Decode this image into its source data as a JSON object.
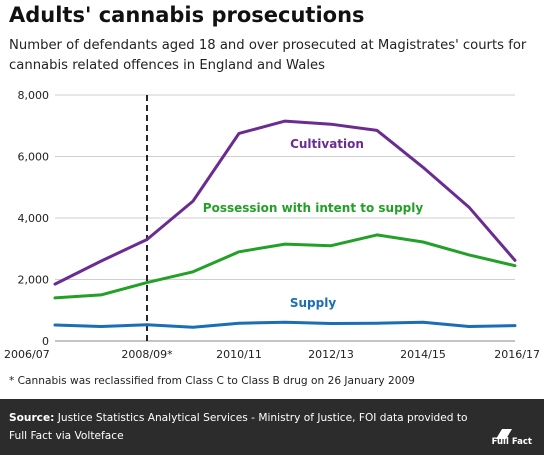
{
  "title": "Adults' cannabis prosecutions",
  "subtitle": "Number of defendants aged 18 and over prosecuted at Magistrates' courts for cannabis related offences in England and Wales",
  "footnote": "* Cannabis was reclassified from Class C to Class B drug on 26 January 2009",
  "source_label": "Source:",
  "source_text": "Justice Statistics Analytical Services - Ministry of Justice, FOI data provided to Full Fact via Volteface",
  "logo_text": "Full Fact",
  "chart_data": {
    "type": "line",
    "title": "",
    "xlabel": "",
    "ylabel": "",
    "x": [
      "2006/07",
      "2007/08",
      "2008/09*",
      "2009/10",
      "2010/11",
      "2011/12",
      "2012/13",
      "2013/14",
      "2014/15",
      "2015/16",
      "2016/17"
    ],
    "x_tick_labels": [
      "2006/07",
      "2008/09*",
      "2010/11",
      "2012/13",
      "2014/15",
      "2016/17"
    ],
    "y_tick_labels": [
      "0",
      "2,000",
      "4,000",
      "6,000",
      "8,000"
    ],
    "ylim": [
      0,
      8000
    ],
    "y_ticks": [
      0,
      2000,
      4000,
      6000,
      8000
    ],
    "grid": true,
    "legend": "inline labels",
    "reference_line": {
      "x": "2008/09*",
      "style": "dashed",
      "color": "#111111"
    },
    "series": [
      {
        "name": "Cultivation",
        "color": "#6a2c91",
        "values": [
          1850,
          2600,
          3300,
          4550,
          6750,
          7150,
          7050,
          6850,
          5650,
          4350,
          2620
        ]
      },
      {
        "name": "Possession with intent to supply",
        "color": "#23a027",
        "values": [
          1400,
          1500,
          1900,
          2250,
          2900,
          3150,
          3100,
          3450,
          3220,
          2800,
          2450
        ]
      },
      {
        "name": "Supply",
        "color": "#1b6db5",
        "values": [
          520,
          470,
          530,
          450,
          580,
          610,
          570,
          580,
          610,
          470,
          500
        ]
      }
    ]
  }
}
